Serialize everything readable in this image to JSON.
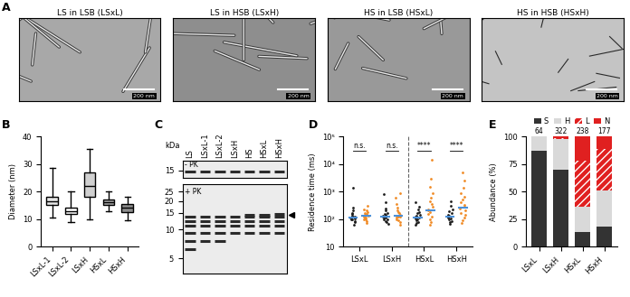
{
  "images": {
    "panel": "A",
    "titles": [
      "LS in LSB (LSxL)",
      "LS in HSB (LSxH)",
      "HS in LSB (HSxL)",
      "HS in HSB (HSxH)"
    ],
    "scale_bar": "200 nm"
  },
  "gel": {
    "panel": "C",
    "unit": "kDa",
    "lanes": [
      "LS",
      "LSxL-1",
      "LSxL-2",
      "LSxH",
      "HS",
      "HSxL",
      "HSxH"
    ],
    "sections": [
      {
        "label": "- PK",
        "markers": [
          15
        ],
        "range": [
          13,
          18
        ],
        "bands": [
          [
            14.6
          ],
          [
            14.6
          ],
          [
            14.6
          ],
          [
            14.6
          ],
          [
            14.6
          ],
          [
            14.6
          ],
          [
            14.6
          ]
        ]
      },
      {
        "label": "+ PK",
        "markers": [
          25,
          20,
          15,
          10,
          5
        ],
        "range": [
          3.5,
          30
        ],
        "arrow": 14.3,
        "bands": [
          [
            13.8,
            12.3,
            10.9,
            9.3,
            7.6,
            6.2
          ],
          [
            13.8,
            12.3,
            10.9,
            9.3,
            7.6
          ],
          [
            13.8,
            12.3,
            10.9,
            9.3,
            7.6
          ],
          [
            13.8,
            12.3,
            10.9,
            9.3
          ],
          [
            14.3,
            13.8,
            12.3,
            10.9,
            9.3
          ],
          [
            14.3,
            13.8,
            12.3,
            10.9,
            9.3
          ],
          [
            14.5,
            13.8,
            12.3,
            10.9,
            9.3
          ]
        ]
      }
    ]
  },
  "chart_data": [
    {
      "panel": "B",
      "type": "box",
      "categories": [
        "LSxL-1",
        "LSxL-2",
        "LSxH",
        "HSxL",
        "HSxH"
      ],
      "boxes": [
        {
          "whislo": 10.5,
          "q1": 15,
          "med": 16.5,
          "q3": 18,
          "whishi": 28.5
        },
        {
          "whislo": 9,
          "q1": 12,
          "med": 13,
          "q3": 14,
          "whishi": 20
        },
        {
          "whislo": 10,
          "q1": 18,
          "med": 22,
          "q3": 27,
          "whishi": 35.5
        },
        {
          "whislo": 13,
          "q1": 15,
          "med": 16,
          "q3": 17,
          "whishi": 20
        },
        {
          "whislo": 9.5,
          "q1": 12.5,
          "med": 14,
          "q3": 15.5,
          "whishi": 18
        }
      ],
      "colors": [
        "#e6e6e6",
        "#ffffff",
        "#d0d0d0",
        "#a6a6a6",
        "#8c8c8c"
      ],
      "y_label": "Diameter (nm)",
      "ylim": [
        0,
        40
      ],
      "yticks": [
        0,
        10,
        20,
        30,
        40
      ]
    },
    {
      "panel": "D",
      "type": "scatter",
      "log": "y",
      "categories": [
        "LSxL",
        "LSxH",
        "HSxL",
        "HSxH"
      ],
      "series": [
        {
          "color": "#1a1a1a",
          "values": [
            [
              60,
              75,
              85,
              95,
              100,
              105,
              110,
              115,
              120,
              125,
              135,
              150,
              170,
              200,
              260,
              1400
            ],
            [
              65,
              75,
              85,
              95,
              100,
              110,
              115,
              120,
              130,
              140,
              150,
              170,
              200,
              250,
              400,
              800
            ],
            [
              60,
              70,
              80,
              90,
              100,
              105,
              110,
              120,
              130,
              140,
              160,
              180,
              220,
              280,
              400
            ],
            [
              65,
              75,
              85,
              95,
              105,
              110,
              120,
              130,
              140,
              160,
              190,
              230,
              300,
              450
            ]
          ],
          "medians": [
            115,
            120,
            110,
            125
          ]
        },
        {
          "color": "#f08a24",
          "values": [
            [
              70,
              85,
              95,
              100,
              110,
              115,
              120,
              130,
              140,
              150,
              165,
              180,
              200,
              230,
              300
            ],
            [
              60,
              75,
              90,
              100,
              110,
              120,
              125,
              135,
              145,
              160,
              180,
              210,
              260,
              350,
              600,
              900
            ],
            [
              60,
              80,
              100,
              120,
              150,
              180,
              200,
              230,
              280,
              350,
              450,
              600,
              900,
              1500,
              3000,
              14000
            ],
            [
              70,
              90,
              110,
              140,
              170,
              200,
              240,
              280,
              330,
              400,
              500,
              650,
              900,
              1400,
              2500,
              5000
            ]
          ],
          "medians": [
            130,
            130,
            210,
            260
          ]
        }
      ],
      "median_color": "#4a90d9",
      "comparisons": [
        {
          "text": "n.s.",
          "category": 0,
          "y": 30000
        },
        {
          "text": "n.s.",
          "category": 1,
          "y": 30000
        },
        {
          "text": "****",
          "category": 2,
          "y": 30000
        },
        {
          "text": "****",
          "category": 3,
          "y": 30000
        }
      ],
      "y_label": "Residence time (ms)",
      "ylim": [
        10,
        100000
      ],
      "yticks": [
        10,
        {
          "value": 100,
          "label": "10²"
        },
        {
          "value": 1000,
          "label": "10³"
        },
        {
          "value": 10000,
          "label": "10⁴"
        },
        {
          "value": 100000,
          "label": "10⁵"
        }
      ]
    },
    {
      "panel": "E",
      "type": "bar",
      "stacked": true,
      "categories": [
        "LSxL",
        "LSxH",
        "HSxL",
        "HSxH"
      ],
      "series": [
        {
          "name": "S",
          "color": "#333333",
          "values": [
            87,
            70,
            13,
            18
          ]
        },
        {
          "name": "H",
          "color": "#d9d9d9",
          "values": [
            13,
            28,
            23,
            33
          ]
        },
        {
          "name": "L",
          "color": "#e02020",
          "values": [
            0,
            1,
            42,
            38
          ]
        },
        {
          "name": "N",
          "color": "#e02020",
          "values": [
            0,
            1,
            22,
            11
          ]
        }
      ],
      "n": [
        64,
        322,
        238,
        177
      ],
      "legend": "upper center",
      "y_label": "Abundance (%)",
      "ylim": [
        0,
        100
      ],
      "yticks": [
        0,
        25,
        50,
        75,
        100
      ]
    }
  ]
}
